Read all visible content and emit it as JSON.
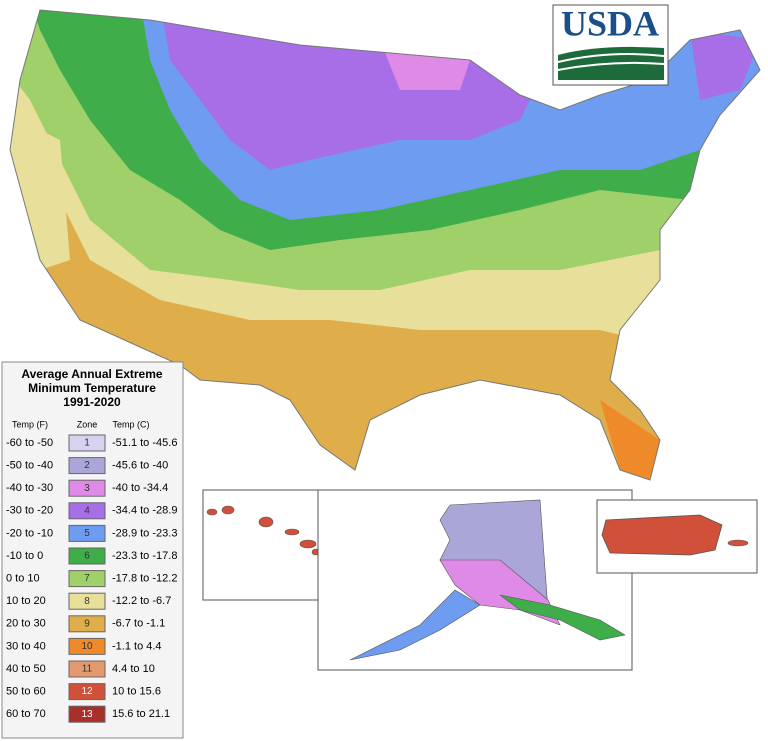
{
  "logo": {
    "text": "USDA",
    "color": "#1a4f8a",
    "bar_color": "#1d6b3a"
  },
  "legend": {
    "title": [
      "Average Annual Extreme",
      "Minimum Temperature",
      "1991-2020"
    ],
    "headers": {
      "temp_f": "Temp (F)",
      "zone": "Zone",
      "temp_c": "Temp (C)"
    },
    "rows": [
      {
        "temp_f": "-60 to -50",
        "zone": "1",
        "temp_c": "-51.1 to -45.6",
        "color": "#d6d2f0"
      },
      {
        "temp_f": "-50 to -40",
        "zone": "2",
        "temp_c": "-45.6 to -40",
        "color": "#aaa6d8"
      },
      {
        "temp_f": "-40 to -30",
        "zone": "3",
        "temp_c": "-40 to -34.4",
        "color": "#e08ae8"
      },
      {
        "temp_f": "-30 to -20",
        "zone": "4",
        "temp_c": "-34.4 to -28.9",
        "color": "#a76ee8"
      },
      {
        "temp_f": "-20 to -10",
        "zone": "5",
        "temp_c": "-28.9 to -23.3",
        "color": "#6e9cf0"
      },
      {
        "temp_f": "-10 to 0",
        "zone": "6",
        "temp_c": "-23.3 to -17.8",
        "color": "#3fae4a"
      },
      {
        "temp_f": "0 to 10",
        "zone": "7",
        "temp_c": "-17.8 to -12.2",
        "color": "#9fd06a"
      },
      {
        "temp_f": "10 to 20",
        "zone": "8",
        "temp_c": "-12.2 to -6.7",
        "color": "#e8e09a"
      },
      {
        "temp_f": "20 to 30",
        "zone": "9",
        "temp_c": "-6.7 to -1.1",
        "color": "#dfae4a"
      },
      {
        "temp_f": "30 to 40",
        "zone": "10",
        "temp_c": "-1.1 to 4.4",
        "color": "#ee8a2a"
      },
      {
        "temp_f": "40 to 50",
        "zone": "11",
        "temp_c": "4.4 to 10",
        "color": "#e39a70"
      },
      {
        "temp_f": "50 to 60",
        "zone": "12",
        "temp_c": "10 to 15.6",
        "color": "#d0503a"
      },
      {
        "temp_f": "60 to 70",
        "zone": "13",
        "temp_c": "15.6 to 21.1",
        "color": "#a8302a"
      }
    ]
  }
}
